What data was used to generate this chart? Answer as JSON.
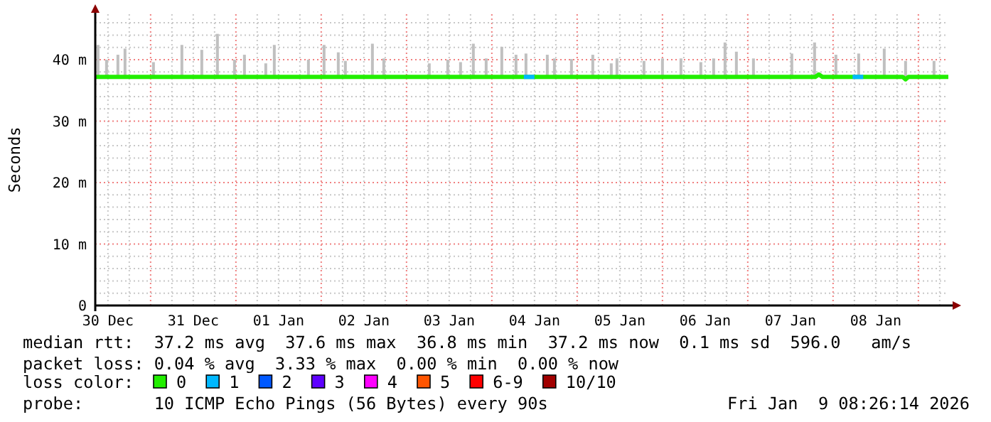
{
  "chart_data": {
    "type": "line",
    "ylabel": "Seconds",
    "legend_title": "loss color:",
    "legend": "bottom",
    "grid": true,
    "xlim": [
      "2025-12-30T08:26",
      "2026-01-09T08:26"
    ],
    "ylim": [
      0,
      47.4
    ],
    "yticks": [
      0,
      {
        "value": 2,
        "label": null
      },
      {
        "value": 4,
        "label": null
      },
      {
        "value": 6,
        "label": null
      },
      {
        "value": 8,
        "label": null
      },
      {
        "value": 10,
        "label": "10 m"
      },
      {
        "value": 12,
        "label": null
      },
      {
        "value": 14,
        "label": null
      },
      {
        "value": 16,
        "label": null
      },
      {
        "value": 18,
        "label": null
      },
      {
        "value": 20,
        "label": "20 m"
      },
      {
        "value": 22,
        "label": null
      },
      {
        "value": 24,
        "label": null
      },
      {
        "value": 26,
        "label": null
      },
      {
        "value": 28,
        "label": null
      },
      {
        "value": 30,
        "label": "30 m"
      },
      {
        "value": 32,
        "label": null
      },
      {
        "value": 34,
        "label": null
      },
      {
        "value": 36,
        "label": null
      },
      {
        "value": 38,
        "label": null
      },
      {
        "value": 40,
        "label": "40 m"
      },
      {
        "value": 42,
        "label": null
      },
      {
        "value": 44,
        "label": null
      },
      {
        "value": 46,
        "label": null
      }
    ],
    "xticks": [
      {
        "value": "2025-12-30T12:00",
        "label": "30 Dec"
      },
      {
        "value": "2025-12-30T18:00",
        "label": null
      },
      {
        "value": "2025-12-31T00:00",
        "label": null
      },
      {
        "value": "2025-12-31T06:00",
        "label": null
      },
      {
        "value": "2025-12-31T12:00",
        "label": "31 Dec"
      },
      {
        "value": "2025-12-31T18:00",
        "label": null
      },
      {
        "value": "2026-01-01T00:00",
        "label": null
      },
      {
        "value": "2026-01-01T06:00",
        "label": null
      },
      {
        "value": "2026-01-01T12:00",
        "label": "01 Jan"
      },
      {
        "value": "2026-01-01T18:00",
        "label": null
      },
      {
        "value": "2026-01-02T00:00",
        "label": null
      },
      {
        "value": "2026-01-02T06:00",
        "label": null
      },
      {
        "value": "2026-01-02T12:00",
        "label": "02 Jan"
      },
      {
        "value": "2026-01-02T18:00",
        "label": null
      },
      {
        "value": "2026-01-03T00:00",
        "label": null
      },
      {
        "value": "2026-01-03T06:00",
        "label": null
      },
      {
        "value": "2026-01-03T12:00",
        "label": "03 Jan"
      },
      {
        "value": "2026-01-03T18:00",
        "label": null
      },
      {
        "value": "2026-01-04T00:00",
        "label": null
      },
      {
        "value": "2026-01-04T06:00",
        "label": null
      },
      {
        "value": "2026-01-04T12:00",
        "label": "04 Jan"
      },
      {
        "value": "2026-01-04T18:00",
        "label": null
      },
      {
        "value": "2026-01-05T00:00",
        "label": null
      },
      {
        "value": "2026-01-05T06:00",
        "label": null
      },
      {
        "value": "2026-01-05T12:00",
        "label": "05 Jan"
      },
      {
        "value": "2026-01-05T18:00",
        "label": null
      },
      {
        "value": "2026-01-06T00:00",
        "label": null
      },
      {
        "value": "2026-01-06T06:00",
        "label": null
      },
      {
        "value": "2026-01-06T12:00",
        "label": "06 Jan"
      },
      {
        "value": "2026-01-06T18:00",
        "label": null
      },
      {
        "value": "2026-01-07T00:00",
        "label": null
      },
      {
        "value": "2026-01-07T06:00",
        "label": null
      },
      {
        "value": "2026-01-07T12:00",
        "label": "07 Jan"
      },
      {
        "value": "2026-01-07T18:00",
        "label": null
      },
      {
        "value": "2026-01-08T00:00",
        "label": null
      },
      {
        "value": "2026-01-08T06:00",
        "label": null
      },
      {
        "value": "2026-01-08T12:00",
        "label": "08 Jan"
      },
      {
        "value": "2026-01-08T18:00",
        "label": null
      },
      {
        "value": "2026-01-09T00:00",
        "label": null
      },
      {
        "value": "2026-01-09T06:00",
        "label": null
      }
    ],
    "annotations": [
      "median rtt:  37.2 ms avg  37.6 ms max  36.8 ms min  37.2 ms now  0.1 ms sd  596.0   am/s",
      "packet loss: 0.04 % avg  3.33 % max  0.00 % min  0.00 % now",
      "probe:       10 ICMP Echo Pings (56 Bytes) every 90s",
      "Fri Jan  9 08:26:14 2026"
    ],
    "series": [
      {
        "type": "bar",
        "color": "#c0c0c0",
        "x": [
          "2025-12-30T09:12",
          "2025-12-30T11:36",
          "2025-12-30T14:48",
          "2025-12-30T16:48",
          "2025-12-31T00:48",
          "2025-12-31T08:48",
          "2025-12-31T14:24",
          "2025-12-31T18:48",
          "2025-12-31T23:36",
          "2026-01-01T02:24",
          "2026-01-01T08:24",
          "2026-01-01T10:48",
          "2026-01-01T20:24",
          "2026-01-02T00:48",
          "2026-01-02T04:48",
          "2026-01-02T06:48",
          "2026-01-02T14:24",
          "2026-01-02T17:36",
          "2026-01-03T06:24",
          "2026-01-03T11:36",
          "2026-01-03T15:12",
          "2026-01-03T18:48",
          "2026-01-03T22:24",
          "2026-01-04T02:48",
          "2026-01-04T06:48",
          "2026-01-04T09:36",
          "2026-01-04T15:36",
          "2026-01-04T17:36",
          "2026-01-04T22:24",
          "2026-01-05T04:24",
          "2026-01-05T09:36",
          "2026-01-05T11:12",
          "2026-01-05T18:48",
          "2026-01-06T00:00",
          "2026-01-06T05:12",
          "2026-01-06T10:48",
          "2026-01-06T14:24",
          "2026-01-06T17:36",
          "2026-01-06T20:48",
          "2026-01-07T01:36",
          "2026-01-07T12:24",
          "2026-01-07T18:48",
          "2026-01-08T00:48",
          "2026-01-08T07:12",
          "2026-01-08T14:24",
          "2026-01-08T20:24",
          "2026-01-09T04:24"
        ],
        "base": [
          37.2,
          37.2,
          37.2,
          37.2,
          37.2,
          37.2,
          37.2,
          37.2,
          37.2,
          37.2,
          37.2,
          37.2,
          37.2,
          37.2,
          37.2,
          37.2,
          37.2,
          37.2,
          37.2,
          37.2,
          37.2,
          37.2,
          37.2,
          37.2,
          37.2,
          37.2,
          37.2,
          37.2,
          37.2,
          37.2,
          37.2,
          37.2,
          37.2,
          37.2,
          37.2,
          37.2,
          37.2,
          37.2,
          37.2,
          37.2,
          37.2,
          37.2,
          37.2,
          37.2,
          37.2,
          37.2,
          37.2
        ],
        "values": [
          5.2,
          2.8,
          3.6,
          4.6,
          2.4,
          5.2,
          4.4,
          7.0,
          2.8,
          3.6,
          2.2,
          5.2,
          2.8,
          5.2,
          4.0,
          2.6,
          5.4,
          3.0,
          2.2,
          2.8,
          2.4,
          5.4,
          3.0,
          4.9,
          3.6,
          3.8,
          3.6,
          3.0,
          2.9,
          3.6,
          2.2,
          3.0,
          2.6,
          3.0,
          3.0,
          2.4,
          3.0,
          5.6,
          4.1,
          3.0,
          3.8,
          5.6,
          3.6,
          3.8,
          4.6,
          2.6,
          2.6
        ]
      },
      {
        "name": "0",
        "color": "#22ee00",
        "x": [
          "2025-12-30T08:26",
          "2026-01-07T19:00",
          "2026-01-07T20:00",
          "2026-01-07T21:00",
          "2026-01-08T19:36",
          "2026-01-08T20:24",
          "2026-01-08T21:12",
          "2026-01-09T08:26"
        ],
        "values": [
          37.2,
          37.2,
          37.6,
          37.2,
          37.2,
          36.8,
          37.2,
          37.2
        ]
      },
      {
        "name": "1",
        "color": "#00b8ff",
        "x": [
          "2026-01-04T09:00",
          "2026-01-04T12:00",
          "2026-01-04T12:30",
          "2026-01-08T05:30",
          "2026-01-08T08:30"
        ],
        "values": [
          37.2,
          37.2,
          null,
          37.2,
          37.2
        ]
      },
      {
        "name": "2",
        "color": "#0059ff"
      },
      {
        "name": "3",
        "color": "#5e00ff"
      },
      {
        "name": "4",
        "color": "#ff00ff"
      },
      {
        "name": "5",
        "color": "#ff5500"
      },
      {
        "name": "6-9",
        "color": "#ff0000"
      },
      {
        "name": "10/10",
        "color": "#a10000"
      }
    ]
  }
}
